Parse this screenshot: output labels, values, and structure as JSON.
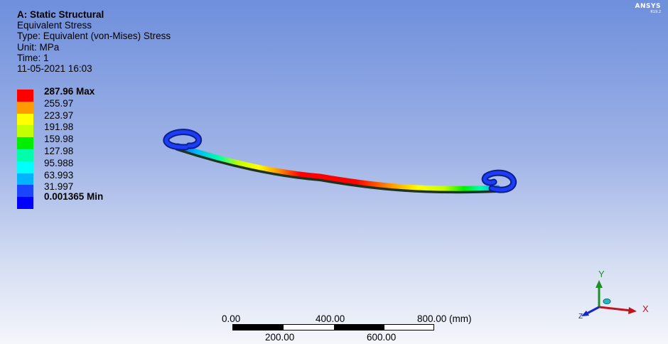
{
  "header": {
    "title": "A: Static Structural",
    "result": "Equivalent Stress",
    "type": "Type: Equivalent (von-Mises) Stress",
    "unit": "Unit: MPa",
    "time": "Time: 1",
    "date": "11-05-2021 16:03"
  },
  "legend": {
    "colors": [
      "#ff0000",
      "#ff9a00",
      "#ffff00",
      "#c2ff00",
      "#00ee00",
      "#00ffaa",
      "#00ffff",
      "#00b4ff",
      "#1a44ff",
      "#0000ff"
    ],
    "labels": [
      "287.96 Max",
      "255.97",
      "223.97",
      "191.98",
      "159.98",
      "127.98",
      "95.988",
      "63.993",
      "31.997"
    ],
    "min_label": "0.001365 Min"
  },
  "logo": {
    "brand": "ANSYS",
    "version": "R19.2"
  },
  "scale": {
    "top_labels": [
      "0.00",
      "400.00",
      "800.00 (mm)"
    ],
    "bottom_labels": [
      "200.00",
      "600.00"
    ]
  },
  "triad": {
    "y_label": "Y",
    "x_label": "X",
    "z_label": "Z"
  }
}
